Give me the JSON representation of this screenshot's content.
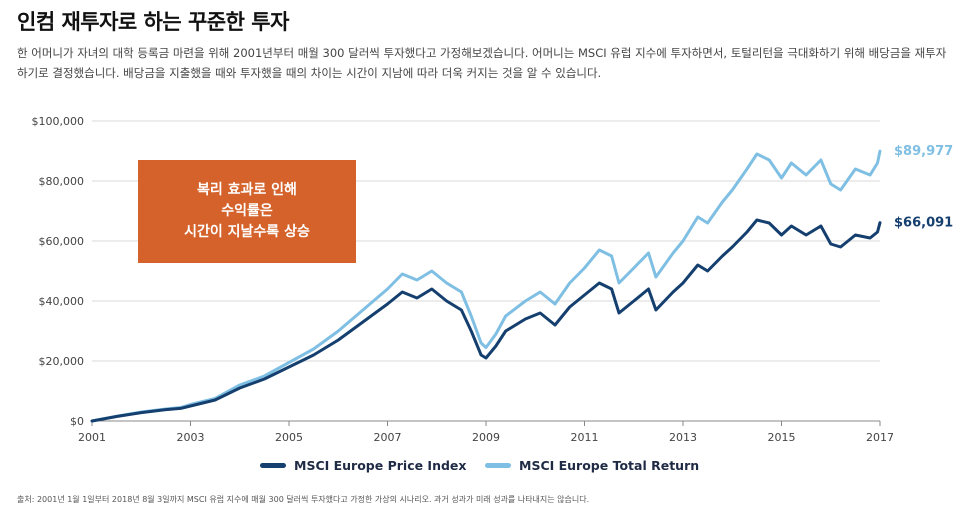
{
  "title": "인컴 재투자로 하는 꾸준한 투자",
  "description": "한 어머니가 자녀의 대학 등록금 마련을 위해 2001년부터 매월 300 달러씩 투자했다고 가정해보겠습니다. 어머니는 MSCI 유럽 지수에 투자하면서, 토털리턴을 극대화하기 위해 배당금을 재투자하기로 결정했습니다. 배당금을 지출했을 때와 투자했을 때의 차이는 시간이 지남에 따라 더욱 커지는 것을 알 수 있습니다.",
  "callout": {
    "line1": "복리 효과로 인해",
    "line2": "수익률은",
    "line3": "시간이 지날수록 상승"
  },
  "source": "출처: 2001년 1월 1일부터 2018년 8월 3일까지 MSCI 유럽 지수에 매월 300 달러씩 투자했다고 가정한 가상의 시나리오. 과거 성과가 미래 성과를 나타내지는 않습니다.",
  "colors": {
    "price": "#143f6e",
    "total": "#7fbfe3",
    "callout": "#d4622a",
    "axis": "#555555"
  },
  "chart_data": {
    "type": "line",
    "xlabel": "",
    "ylabel": "",
    "ylim": [
      0,
      100000
    ],
    "xlim": [
      2001,
      2017
    ],
    "y_ticks": [
      0,
      20000,
      40000,
      60000,
      80000,
      100000
    ],
    "y_tick_labels": [
      "$0",
      "$20,000",
      "$40,000",
      "$60,000",
      "$80,000",
      "$100,000"
    ],
    "x_ticks": [
      2001,
      2003,
      2005,
      2007,
      2009,
      2011,
      2013,
      2015,
      2017
    ],
    "x_tick_labels": [
      "2001",
      "2003",
      "2005",
      "2007",
      "2009",
      "2011",
      "2013",
      "2015",
      "2017"
    ],
    "grid": "horizontal",
    "legend": "bottom",
    "series": [
      {
        "name": "MSCI Europe Price Index",
        "end_label": "$66,091",
        "points": [
          [
            2001.0,
            0
          ],
          [
            2001.5,
            1500
          ],
          [
            2002.0,
            2800
          ],
          [
            2002.5,
            3800
          ],
          [
            2002.8,
            4200
          ],
          [
            2003.0,
            5000
          ],
          [
            2003.5,
            7000
          ],
          [
            2004.0,
            11000
          ],
          [
            2004.5,
            14000
          ],
          [
            2005.0,
            18000
          ],
          [
            2005.5,
            22000
          ],
          [
            2006.0,
            27000
          ],
          [
            2006.5,
            33000
          ],
          [
            2007.0,
            39000
          ],
          [
            2007.3,
            43000
          ],
          [
            2007.6,
            41000
          ],
          [
            2007.9,
            44000
          ],
          [
            2008.2,
            40000
          ],
          [
            2008.5,
            37000
          ],
          [
            2008.7,
            30000
          ],
          [
            2008.9,
            22000
          ],
          [
            2009.0,
            21000
          ],
          [
            2009.2,
            25000
          ],
          [
            2009.4,
            30000
          ],
          [
            2009.8,
            34000
          ],
          [
            2010.1,
            36000
          ],
          [
            2010.4,
            32000
          ],
          [
            2010.7,
            38000
          ],
          [
            2011.0,
            42000
          ],
          [
            2011.3,
            46000
          ],
          [
            2011.55,
            44000
          ],
          [
            2011.7,
            36000
          ],
          [
            2012.0,
            40000
          ],
          [
            2012.3,
            44000
          ],
          [
            2012.45,
            37000
          ],
          [
            2012.8,
            43000
          ],
          [
            2013.0,
            46000
          ],
          [
            2013.3,
            52000
          ],
          [
            2013.5,
            50000
          ],
          [
            2013.8,
            55000
          ],
          [
            2014.0,
            58000
          ],
          [
            2014.3,
            63000
          ],
          [
            2014.5,
            67000
          ],
          [
            2014.75,
            66000
          ],
          [
            2015.0,
            62000
          ],
          [
            2015.2,
            65000
          ],
          [
            2015.5,
            62000
          ],
          [
            2015.8,
            65000
          ],
          [
            2016.0,
            59000
          ],
          [
            2016.2,
            58000
          ],
          [
            2016.5,
            62000
          ],
          [
            2016.8,
            61000
          ],
          [
            2016.95,
            63000
          ],
          [
            2017.0,
            66091
          ]
        ]
      },
      {
        "name": "MSCI Europe Total Return",
        "end_label": "$89,977",
        "points": [
          [
            2001.0,
            0
          ],
          [
            2001.5,
            1600
          ],
          [
            2002.0,
            3000
          ],
          [
            2002.5,
            4000
          ],
          [
            2002.8,
            4500
          ],
          [
            2003.0,
            5500
          ],
          [
            2003.5,
            7500
          ],
          [
            2004.0,
            12000
          ],
          [
            2004.5,
            15000
          ],
          [
            2005.0,
            19500
          ],
          [
            2005.5,
            24000
          ],
          [
            2006.0,
            30000
          ],
          [
            2006.5,
            37000
          ],
          [
            2007.0,
            44000
          ],
          [
            2007.3,
            49000
          ],
          [
            2007.6,
            47000
          ],
          [
            2007.9,
            50000
          ],
          [
            2008.2,
            46000
          ],
          [
            2008.5,
            43000
          ],
          [
            2008.7,
            35000
          ],
          [
            2008.9,
            26000
          ],
          [
            2009.0,
            24500
          ],
          [
            2009.2,
            29000
          ],
          [
            2009.4,
            35000
          ],
          [
            2009.8,
            40000
          ],
          [
            2010.1,
            43000
          ],
          [
            2010.4,
            39000
          ],
          [
            2010.7,
            46000
          ],
          [
            2011.0,
            51000
          ],
          [
            2011.3,
            57000
          ],
          [
            2011.55,
            55000
          ],
          [
            2011.7,
            46000
          ],
          [
            2012.0,
            51000
          ],
          [
            2012.3,
            56000
          ],
          [
            2012.45,
            48000
          ],
          [
            2012.8,
            56000
          ],
          [
            2013.0,
            60000
          ],
          [
            2013.3,
            68000
          ],
          [
            2013.5,
            66000
          ],
          [
            2013.8,
            73000
          ],
          [
            2014.0,
            77000
          ],
          [
            2014.3,
            84000
          ],
          [
            2014.5,
            89000
          ],
          [
            2014.75,
            87000
          ],
          [
            2015.0,
            81000
          ],
          [
            2015.2,
            86000
          ],
          [
            2015.5,
            82000
          ],
          [
            2015.8,
            87000
          ],
          [
            2016.0,
            79000
          ],
          [
            2016.2,
            77000
          ],
          [
            2016.5,
            84000
          ],
          [
            2016.8,
            82000
          ],
          [
            2016.95,
            86000
          ],
          [
            2017.0,
            89977
          ]
        ]
      }
    ]
  }
}
